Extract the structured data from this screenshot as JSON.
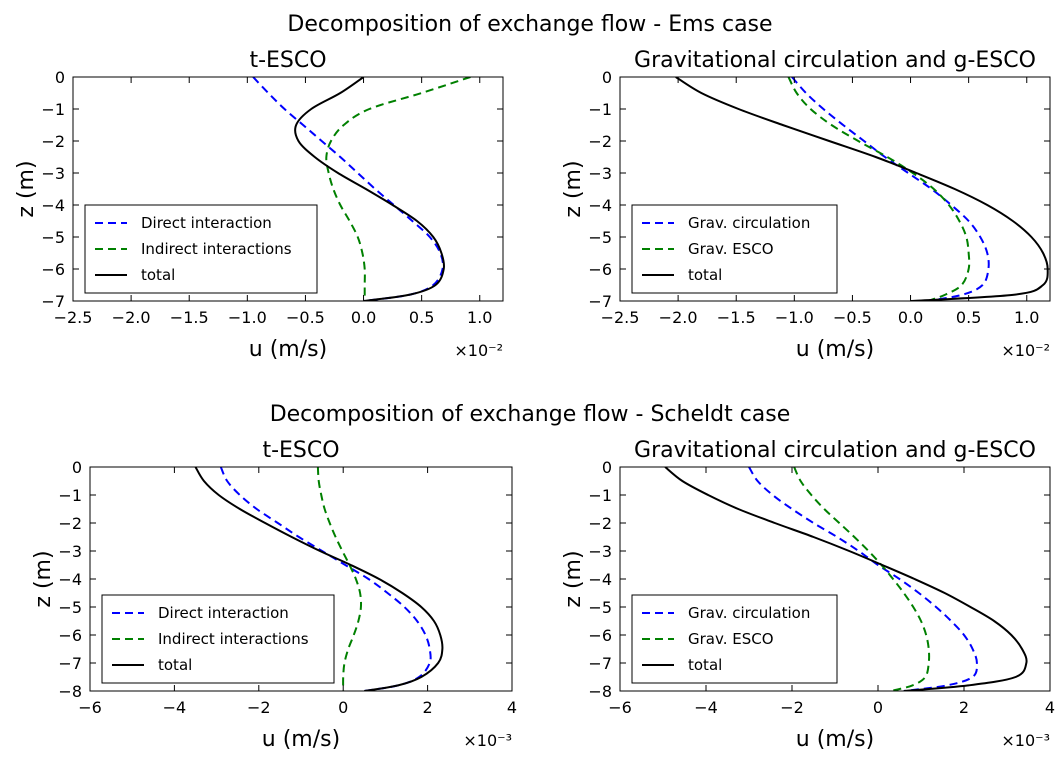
{
  "figure": {
    "top_title": "Decomposition of exchange flow - Ems case",
    "bottom_title": "Decomposition of exchange flow - Scheldt case"
  },
  "chart_data": [
    {
      "type": "line",
      "title": "t-ESCO",
      "xlabel": "u (m/s)",
      "ylabel": "z (m)",
      "x_scale_label": "×10⁻²",
      "xlim": [
        -2.5,
        1.2
      ],
      "ylim": [
        -7,
        0
      ],
      "xticks": [
        -2.5,
        -2.0,
        -1.5,
        -1.0,
        -0.5,
        0.0,
        0.5,
        1.0
      ],
      "xtick_labels": [
        "−2.5",
        "−2.0",
        "−1.5",
        "−1.0",
        "−0.5",
        "0.0",
        "0.5",
        "1.0"
      ],
      "yticks": [
        0,
        -1,
        -2,
        -3,
        -4,
        -5,
        -6,
        -7
      ],
      "ytick_labels": [
        "0",
        "−1",
        "−2",
        "−3",
        "−4",
        "−5",
        "−6",
        "−7"
      ],
      "legend_position": "lower-left",
      "series": [
        {
          "name": "Direct interaction",
          "color": "#0000ff",
          "dash": "dashed",
          "z": [
            0,
            -0.5,
            -1,
            -1.5,
            -2,
            -2.5,
            -3,
            -3.5,
            -4,
            -4.5,
            -5,
            -5.5,
            -6,
            -6.5,
            -6.8,
            -7
          ],
          "u": [
            -0.95,
            -0.82,
            -0.68,
            -0.52,
            -0.36,
            -0.2,
            -0.05,
            0.1,
            0.26,
            0.42,
            0.57,
            0.66,
            0.68,
            0.6,
            0.4,
            0.0
          ]
        },
        {
          "name": "Indirect interactions",
          "color": "#008000",
          "dash": "dashed",
          "z": [
            0,
            -0.5,
            -1,
            -1.5,
            -2,
            -2.5,
            -3,
            -3.5,
            -4,
            -4.5,
            -5,
            -5.5,
            -6,
            -6.5,
            -7
          ],
          "u": [
            0.92,
            0.5,
            0.05,
            -0.17,
            -0.28,
            -0.32,
            -0.3,
            -0.26,
            -0.2,
            -0.12,
            -0.05,
            -0.01,
            0.01,
            0.01,
            0.01
          ]
        },
        {
          "name": "total",
          "color": "#000000",
          "dash": "solid",
          "z": [
            0,
            -0.5,
            -1,
            -1.5,
            -2,
            -2.5,
            -3,
            -3.5,
            -4,
            -4.5,
            -5,
            -5.5,
            -6,
            -6.5,
            -6.8,
            -7
          ],
          "u": [
            0.0,
            -0.2,
            -0.45,
            -0.58,
            -0.56,
            -0.42,
            -0.22,
            0.02,
            0.25,
            0.46,
            0.6,
            0.67,
            0.69,
            0.62,
            0.4,
            0.0
          ]
        }
      ]
    },
    {
      "type": "line",
      "title": "Gravitational circulation and g-ESCO",
      "xlabel": "u (m/s)",
      "ylabel": "z (m)",
      "x_scale_label": "×10⁻²",
      "xlim": [
        -2.5,
        1.2
      ],
      "ylim": [
        -7,
        0
      ],
      "xticks": [
        -2.5,
        -2.0,
        -1.5,
        -1.0,
        -0.5,
        0.0,
        0.5,
        1.0
      ],
      "xtick_labels": [
        "−2.5",
        "−2.0",
        "−1.5",
        "−1.0",
        "−0.5",
        "0.0",
        "0.5",
        "1.0"
      ],
      "yticks": [
        0,
        -1,
        -2,
        -3,
        -4,
        -5,
        -6,
        -7
      ],
      "ytick_labels": [
        "0",
        "−1",
        "−2",
        "−3",
        "−4",
        "−5",
        "−6",
        "−7"
      ],
      "legend_position": "lower-left",
      "series": [
        {
          "name": "Grav. circulation",
          "color": "#0000ff",
          "dash": "dashed",
          "z": [
            0,
            -0.5,
            -1,
            -1.5,
            -2,
            -2.5,
            -3,
            -3.5,
            -4,
            -4.5,
            -5,
            -5.5,
            -6,
            -6.5,
            -6.8,
            -7
          ],
          "u": [
            -1.02,
            -0.9,
            -0.75,
            -0.58,
            -0.4,
            -0.22,
            -0.02,
            0.18,
            0.35,
            0.5,
            0.6,
            0.66,
            0.67,
            0.62,
            0.45,
            0.15
          ]
        },
        {
          "name": "Grav. ESCO",
          "color": "#008000",
          "dash": "dashed",
          "z": [
            0,
            -0.5,
            -1,
            -1.5,
            -2,
            -2.5,
            -3,
            -3.5,
            -4,
            -4.5,
            -5,
            -5.5,
            -6,
            -6.5,
            -6.8,
            -7
          ],
          "u": [
            -1.05,
            -0.98,
            -0.86,
            -0.68,
            -0.45,
            -0.2,
            0.02,
            0.2,
            0.33,
            0.42,
            0.48,
            0.5,
            0.5,
            0.44,
            0.3,
            0.15
          ]
        },
        {
          "name": "total",
          "color": "#000000",
          "dash": "solid",
          "z": [
            0,
            -0.5,
            -1,
            -1.5,
            -2,
            -2.5,
            -3,
            -3.5,
            -4,
            -4.5,
            -5,
            -5.5,
            -6,
            -6.5,
            -6.8,
            -7
          ],
          "u": [
            -2.02,
            -1.8,
            -1.48,
            -1.1,
            -0.7,
            -0.3,
            0.05,
            0.38,
            0.66,
            0.88,
            1.04,
            1.14,
            1.18,
            1.14,
            0.9,
            0.0
          ]
        }
      ]
    },
    {
      "type": "line",
      "title": "t-ESCO",
      "xlabel": "u (m/s)",
      "ylabel": "z (m)",
      "x_scale_label": "×10⁻³",
      "xlim": [
        -6,
        4
      ],
      "ylim": [
        -8,
        0
      ],
      "xticks": [
        -6,
        -4,
        -2,
        0,
        2,
        4
      ],
      "xtick_labels": [
        "−6",
        "−4",
        "−2",
        "0",
        "2",
        "4"
      ],
      "yticks": [
        0,
        -1,
        -2,
        -3,
        -4,
        -5,
        -6,
        -7,
        -8
      ],
      "ytick_labels": [
        "0",
        "−1",
        "−2",
        "−3",
        "−4",
        "−5",
        "−6",
        "−7",
        "−8"
      ],
      "legend_position": "lower-left",
      "series": [
        {
          "name": "Direct interaction",
          "color": "#0000ff",
          "dash": "dashed",
          "z": [
            0,
            -0.5,
            -1,
            -1.5,
            -2,
            -2.5,
            -3,
            -3.5,
            -4,
            -4.5,
            -5,
            -5.5,
            -6,
            -6.5,
            -7,
            -7.5,
            -7.8,
            -8
          ],
          "u": [
            -2.9,
            -2.75,
            -2.45,
            -2.05,
            -1.55,
            -1.05,
            -0.5,
            0.05,
            0.6,
            1.05,
            1.45,
            1.75,
            1.95,
            2.05,
            2.05,
            1.8,
            1.3,
            0.5
          ]
        },
        {
          "name": "Indirect interactions",
          "color": "#008000",
          "dash": "dashed",
          "z": [
            0,
            -0.5,
            -1,
            -1.5,
            -2,
            -2.5,
            -3,
            -3.5,
            -4,
            -4.5,
            -5,
            -5.5,
            -6,
            -6.5,
            -7,
            -7.5,
            -8
          ],
          "u": [
            -0.6,
            -0.58,
            -0.52,
            -0.44,
            -0.32,
            -0.18,
            -0.02,
            0.15,
            0.3,
            0.4,
            0.42,
            0.36,
            0.25,
            0.12,
            0.03,
            0.0,
            0.0
          ]
        },
        {
          "name": "total",
          "color": "#000000",
          "dash": "solid",
          "z": [
            0,
            -0.5,
            -1,
            -1.5,
            -2,
            -2.5,
            -3,
            -3.5,
            -4,
            -4.5,
            -5,
            -5.5,
            -6,
            -6.5,
            -7,
            -7.5,
            -7.8,
            -8
          ],
          "u": [
            -3.5,
            -3.3,
            -2.95,
            -2.45,
            -1.85,
            -1.22,
            -0.55,
            0.18,
            0.85,
            1.4,
            1.85,
            2.15,
            2.3,
            2.35,
            2.25,
            1.85,
            1.3,
            0.5
          ]
        }
      ]
    },
    {
      "type": "line",
      "title": "Gravitational circulation and g-ESCO",
      "xlabel": "u (m/s)",
      "ylabel": "z (m)",
      "x_scale_label": "×10⁻³",
      "xlim": [
        -6,
        4
      ],
      "ylim": [
        -8,
        0
      ],
      "xticks": [
        -6,
        -4,
        -2,
        0,
        2,
        4
      ],
      "xtick_labels": [
        "−6",
        "−4",
        "−2",
        "0",
        "2",
        "4"
      ],
      "yticks": [
        0,
        -1,
        -2,
        -3,
        -4,
        -5,
        -6,
        -7,
        -8
      ],
      "ytick_labels": [
        "0",
        "−1",
        "−2",
        "−3",
        "−4",
        "−5",
        "−6",
        "−7",
        "−8"
      ],
      "legend_position": "lower-left",
      "series": [
        {
          "name": "Grav. circulation",
          "color": "#0000ff",
          "dash": "dashed",
          "z": [
            0,
            -0.5,
            -1,
            -1.5,
            -2,
            -2.5,
            -3,
            -3.5,
            -4,
            -4.5,
            -5,
            -5.5,
            -6,
            -6.5,
            -7,
            -7.5,
            -7.8,
            -8
          ],
          "u": [
            -3.0,
            -2.8,
            -2.45,
            -2.0,
            -1.5,
            -0.95,
            -0.45,
            0.0,
            0.5,
            0.95,
            1.35,
            1.7,
            2.0,
            2.2,
            2.3,
            2.2,
            1.6,
            0.6
          ]
        },
        {
          "name": "Grav. ESCO",
          "color": "#008000",
          "dash": "dashed",
          "z": [
            0,
            -0.5,
            -1,
            -1.5,
            -2,
            -2.5,
            -3,
            -3.5,
            -4,
            -4.5,
            -5,
            -5.5,
            -6,
            -6.5,
            -7,
            -7.5,
            -7.8,
            -8
          ],
          "u": [
            -1.95,
            -1.8,
            -1.55,
            -1.25,
            -0.9,
            -0.55,
            -0.22,
            0.08,
            0.35,
            0.6,
            0.82,
            1.0,
            1.12,
            1.18,
            1.18,
            1.1,
            0.8,
            0.3
          ]
        },
        {
          "name": "total",
          "color": "#000000",
          "dash": "solid",
          "z": [
            0,
            -0.5,
            -1,
            -1.5,
            -2,
            -2.5,
            -3,
            -3.5,
            -4,
            -4.5,
            -5,
            -5.5,
            -6,
            -6.5,
            -7,
            -7.5,
            -7.8,
            -8
          ],
          "u": [
            -4.95,
            -4.55,
            -3.95,
            -3.25,
            -2.4,
            -1.5,
            -0.67,
            0.1,
            0.85,
            1.55,
            2.15,
            2.7,
            3.1,
            3.35,
            3.45,
            3.2,
            2.1,
            0.6
          ]
        }
      ]
    }
  ]
}
